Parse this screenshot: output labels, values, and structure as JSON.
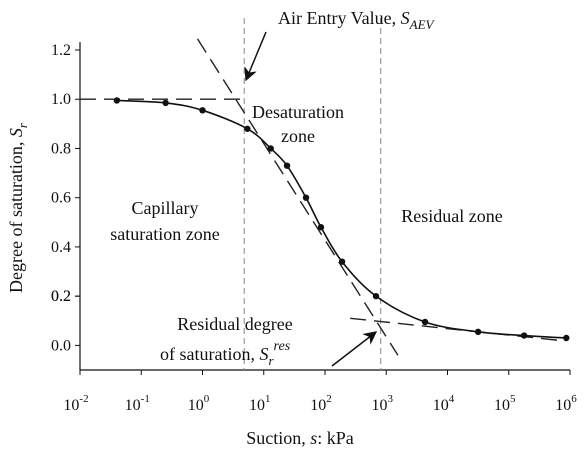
{
  "chart_data": {
    "type": "line",
    "xlabel": {
      "text": "Suction, ",
      "symbol": "s",
      "unit": ": kPa"
    },
    "ylabel": {
      "text": "Degree of saturation, ",
      "symbol": "S",
      "sub": "r"
    },
    "x": [
      0.04,
      0.25,
      1,
      5.4,
      13,
      24,
      49,
      86,
      190,
      680,
      4300,
      31600,
      178000,
      870000
    ],
    "series": [
      {
        "color": "#111111",
        "values": [
          0.995,
          0.985,
          0.955,
          0.88,
          0.8,
          0.73,
          0.6,
          0.48,
          0.34,
          0.2,
          0.095,
          0.055,
          0.04,
          0.03
        ]
      }
    ],
    "xscale": "log",
    "xlim": [
      0.01,
      1000000
    ],
    "xticks": [
      {
        "value": 0.01,
        "label": "10",
        "exponent": "-2"
      },
      {
        "value": 0.1,
        "label": "10",
        "exponent": "-1"
      },
      {
        "value": 1,
        "label": "10",
        "exponent": "0"
      },
      {
        "value": 10,
        "label": "10",
        "exponent": "1"
      },
      {
        "value": 100,
        "label": "10",
        "exponent": "2"
      },
      {
        "value": 1000,
        "label": "10",
        "exponent": "3"
      },
      {
        "value": 10000,
        "label": "10",
        "exponent": "4"
      },
      {
        "value": 100000,
        "label": "10",
        "exponent": "5"
      },
      {
        "value": 1000000,
        "label": "10",
        "exponent": "6"
      }
    ],
    "ylim": [
      -0.1,
      1.2
    ],
    "yticks": [
      {
        "value": 0,
        "label": "0.0"
      },
      0.2,
      0.4,
      0.6,
      0.8,
      {
        "value": 1,
        "label": "1.0"
      },
      0.2,
      1.2
    ],
    "vertical_lines": [
      4.8,
      810
    ],
    "dashed_lines": [
      {
        "x": [
          0.01,
          5
        ],
        "y": [
          1,
          1
        ]
      },
      {
        "x": [
          0.83,
          1550
        ],
        "y": [
          1.245,
          -0.04
        ]
      },
      {
        "x": [
          257,
          690000
        ],
        "y": [
          0.11,
          0.02
        ]
      }
    ],
    "annotations": {
      "aev": {
        "text": "Air Entry Value, ",
        "symbol": "S",
        "sub": "AEV"
      },
      "desaturation": [
        "Desaturation",
        "zone"
      ],
      "capillary": [
        "Capillary",
        "saturation zone"
      ],
      "residual_zone": "Residual zone",
      "residual_degree": {
        "line1": "Residual degree",
        "text": "of saturation, ",
        "symbol": "S",
        "sub": "r",
        "sup": "res"
      }
    }
  }
}
